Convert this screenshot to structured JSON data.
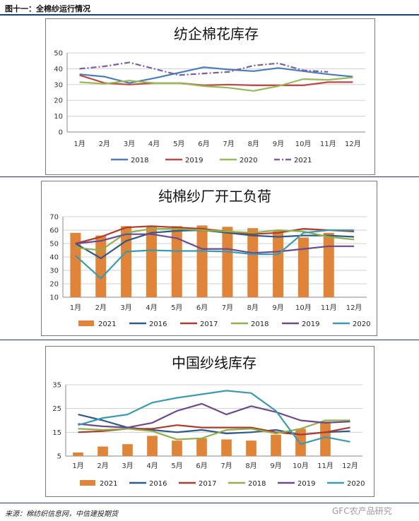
{
  "figure_title": "图十一：全棉纱运行情况",
  "source": "来源：棉纺织信息网，中信建投期货",
  "watermark": "GFC农产品研究",
  "chart_data": [
    {
      "type": "line",
      "title": "纺企棉花库存",
      "categories": [
        "1月",
        "2月",
        "3月",
        "4月",
        "5月",
        "6月",
        "7月",
        "8月",
        "9月",
        "10月",
        "11月",
        "12月"
      ],
      "ylim": [
        0,
        50
      ],
      "yticks": [
        0,
        10,
        20,
        30,
        40,
        50
      ],
      "grid": true,
      "legend": "bottom",
      "series": [
        {
          "name": "2018",
          "color": "#4a7ebb",
          "dash": "",
          "values": [
            36.5,
            35,
            31,
            34,
            37.5,
            41,
            39.5,
            38.5,
            40.5,
            38.5,
            36.5,
            35
          ]
        },
        {
          "name": "2019",
          "color": "#be4b48",
          "dash": "",
          "values": [
            36,
            31,
            30,
            31,
            31,
            29.5,
            30,
            29.5,
            29.5,
            29.5,
            31.5,
            31.5
          ]
        },
        {
          "name": "2020",
          "color": "#98b954",
          "dash": "",
          "values": [
            31.5,
            30.5,
            32.5,
            31,
            31,
            29,
            28,
            26,
            29,
            33.5,
            33,
            34.5
          ]
        },
        {
          "name": "2021",
          "color": "#7d60a0",
          "dash": "8,3,2,3",
          "values": [
            40,
            41.5,
            44,
            40,
            36,
            37,
            38,
            42,
            43.5,
            39,
            38,
            null
          ]
        }
      ]
    },
    {
      "type": "bar+line",
      "title": "纯棉纱厂开工负荷",
      "categories": [
        "1月",
        "2月",
        "3月",
        "4月",
        "5月",
        "6月",
        "7月",
        "8月",
        "9月",
        "10月",
        "11月",
        "12月"
      ],
      "ylim": [
        10,
        70
      ],
      "yticks": [
        10,
        20,
        30,
        40,
        50,
        60,
        70
      ],
      "grid": true,
      "legend": "bottom",
      "bars": {
        "name": "2021",
        "color": "#e0843a",
        "values": [
          58,
          56,
          63,
          62.5,
          63,
          63.5,
          62.5,
          61.5,
          60,
          54.5,
          58,
          null
        ]
      },
      "series": [
        {
          "name": "2016",
          "color": "#2e5c8a",
          "values": [
            50,
            39,
            52,
            58,
            59.5,
            60,
            58,
            56,
            55,
            56,
            56,
            55
          ]
        },
        {
          "name": "2017",
          "color": "#b03a2e",
          "values": [
            50,
            55,
            62,
            63,
            62,
            61,
            59,
            57,
            58,
            61,
            60,
            59
          ]
        },
        {
          "name": "2018",
          "color": "#8fb04a",
          "values": [
            47,
            45,
            58,
            61,
            61,
            60,
            59,
            58,
            60,
            59,
            55,
            53
          ]
        },
        {
          "name": "2019",
          "color": "#6b4a8e",
          "values": [
            50,
            52,
            57,
            57,
            54,
            46,
            46,
            43,
            44,
            46,
            48,
            48
          ]
        },
        {
          "name": "2020",
          "color": "#3a9bb0",
          "values": [
            41,
            24,
            44,
            45,
            44.5,
            44.5,
            44,
            42,
            42,
            58,
            60,
            60
          ]
        }
      ]
    },
    {
      "type": "bar+line",
      "title": "中国纱线库存",
      "categories": [
        "1月",
        "2月",
        "3月",
        "4月",
        "5月",
        "6月",
        "7月",
        "8月",
        "9月",
        "10月",
        "11月",
        "12月"
      ],
      "ylim": [
        5,
        35
      ],
      "yticks": [
        5,
        15,
        25,
        35
      ],
      "grid": true,
      "legend": "bottom",
      "bars": {
        "name": "2021",
        "color": "#e0843a",
        "values": [
          6.5,
          9,
          10,
          13.5,
          11.5,
          12.5,
          12,
          11.5,
          14,
          16.5,
          19.5,
          null
        ]
      },
      "series": [
        {
          "name": "2016",
          "color": "#2e5c8a",
          "values": [
            22.5,
            20,
            17,
            16,
            15,
            16,
            14.5,
            15,
            16,
            14,
            15,
            15.5
          ]
        },
        {
          "name": "2017",
          "color": "#b03a2e",
          "values": [
            15,
            15.5,
            16.5,
            16.5,
            18,
            17,
            17,
            17,
            15,
            14,
            15,
            17
          ]
        },
        {
          "name": "2018",
          "color": "#8fb04a",
          "values": [
            16.5,
            16,
            16.5,
            15.5,
            12,
            12.5,
            16,
            16.5,
            14.5,
            16.5,
            20,
            20
          ]
        },
        {
          "name": "2019",
          "color": "#6b4a8e",
          "values": [
            18.5,
            17.5,
            17,
            19,
            24,
            27,
            22.5,
            26,
            23.5,
            20,
            19,
            19.5
          ]
        },
        {
          "name": "2020",
          "color": "#3a9bb0",
          "values": [
            18,
            21,
            22.5,
            27.5,
            29.5,
            31,
            32.5,
            31.5,
            24,
            10,
            13,
            11
          ]
        }
      ]
    }
  ]
}
